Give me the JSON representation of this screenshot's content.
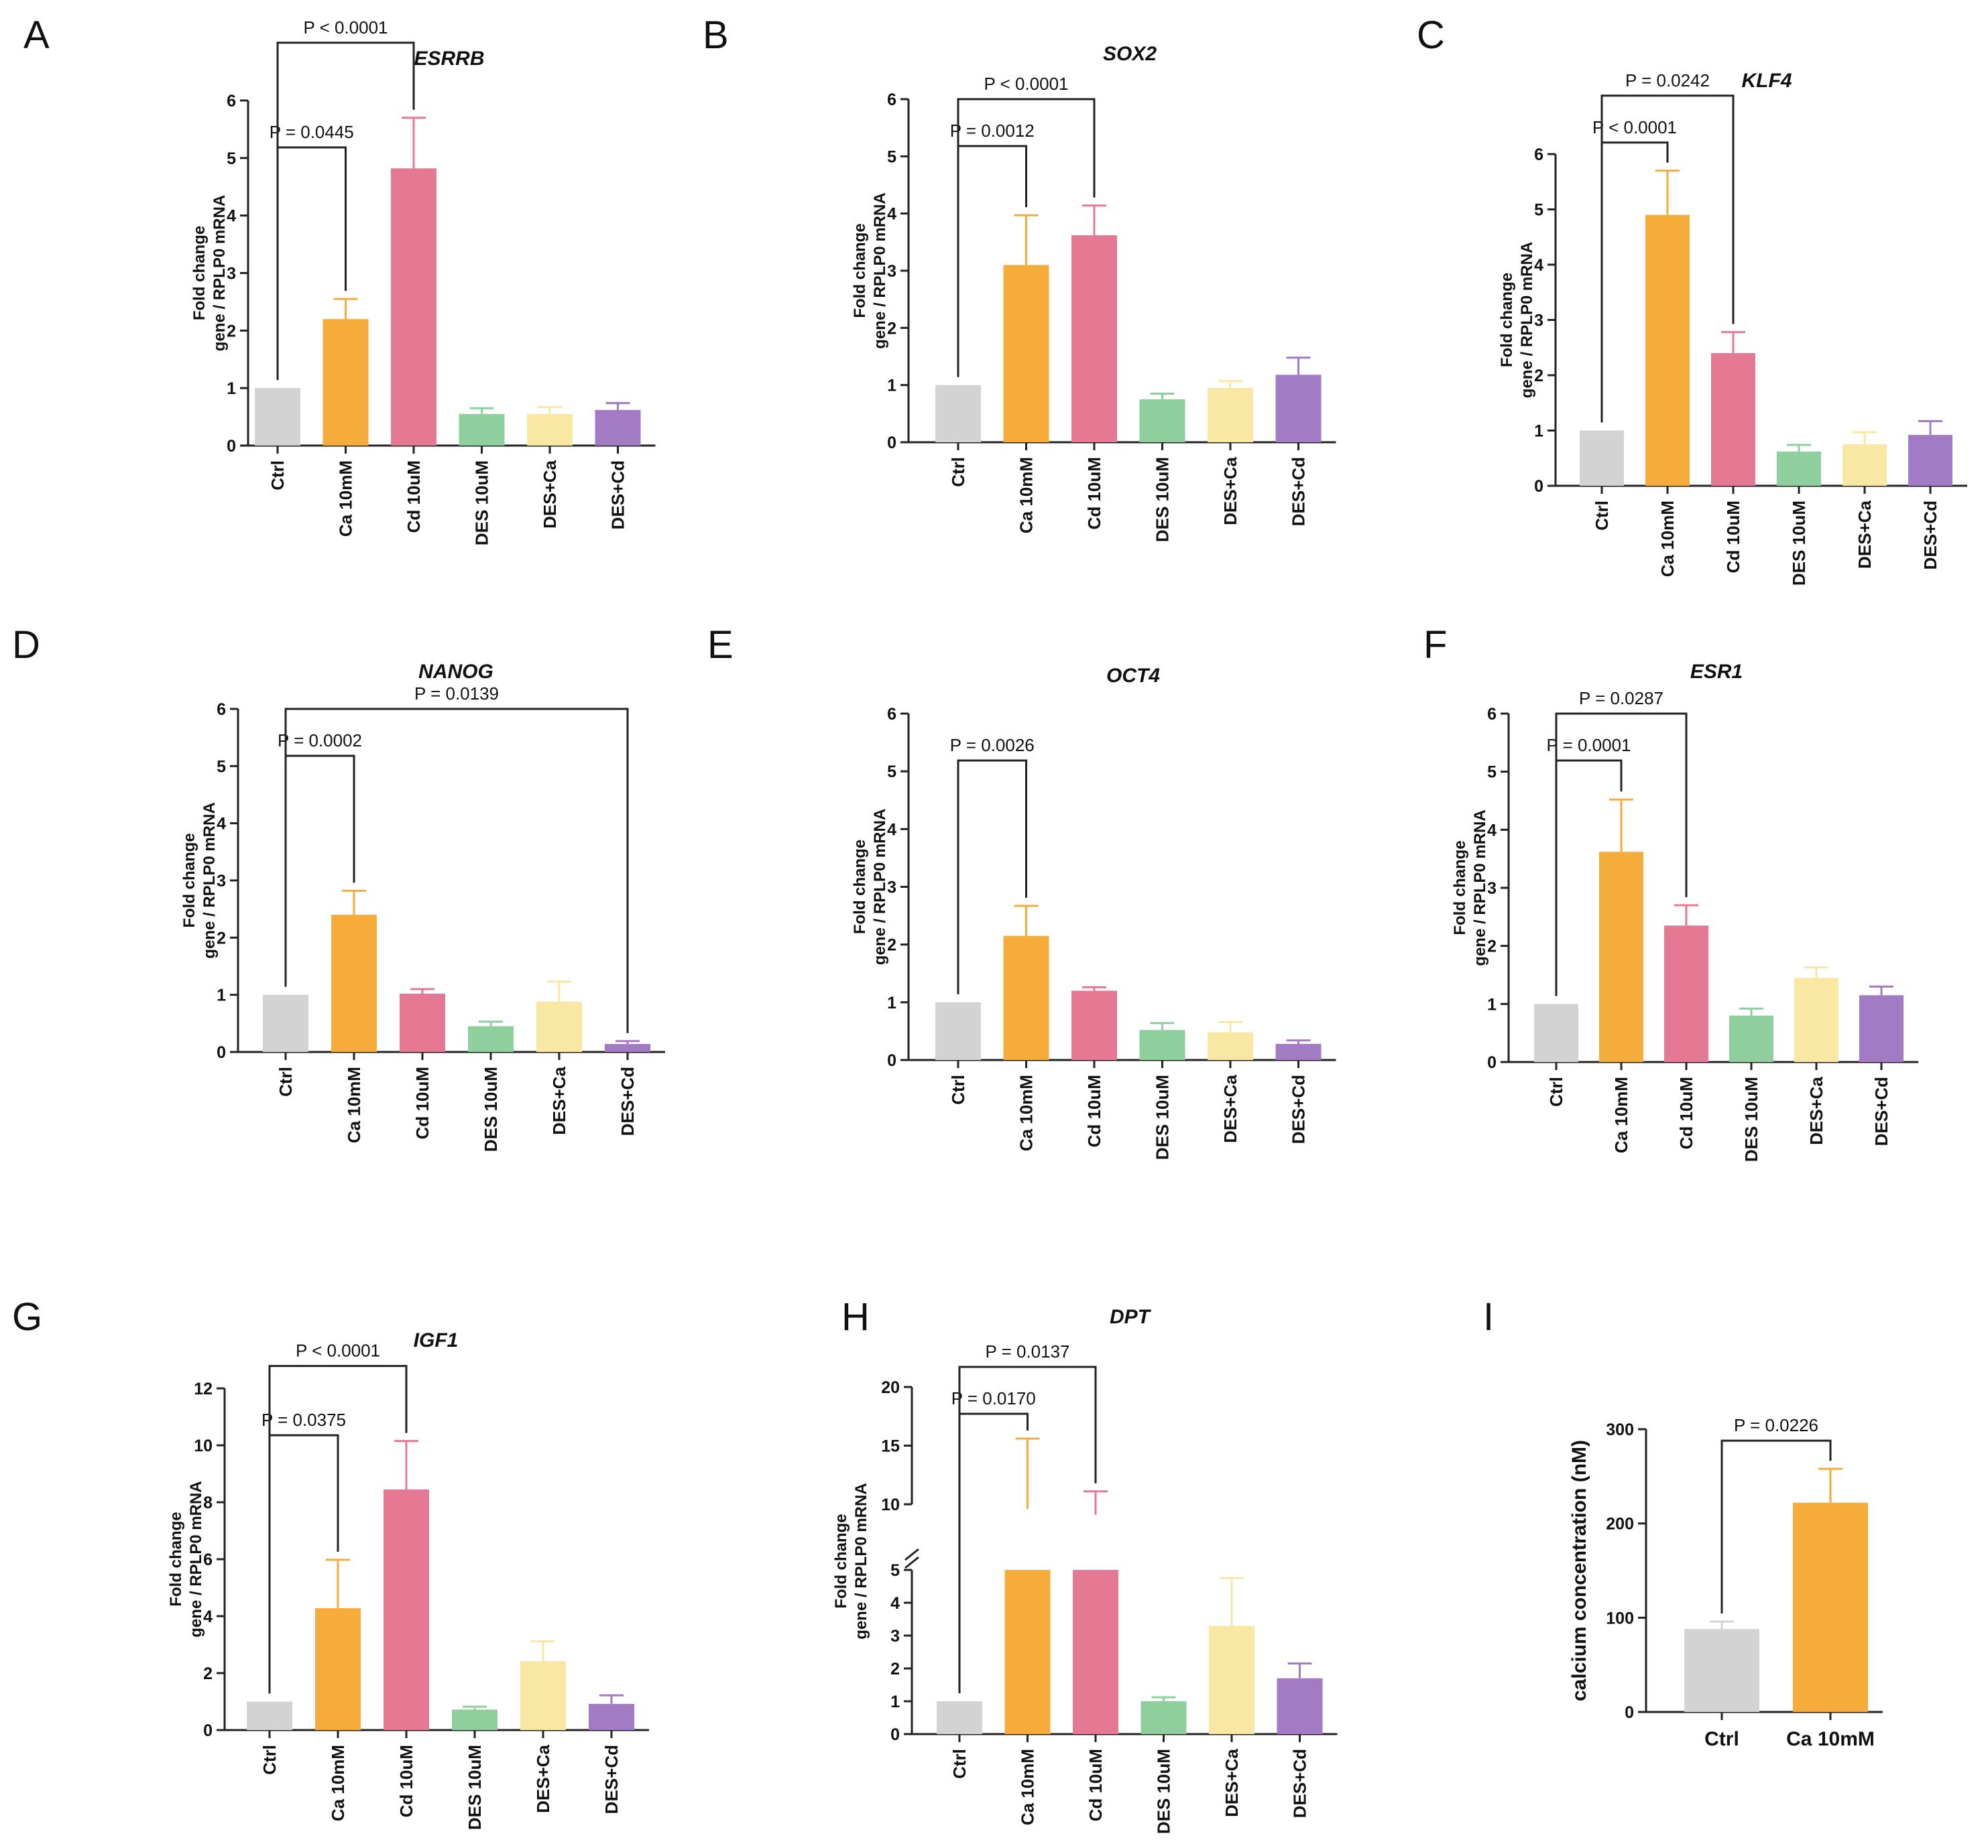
{
  "colors": {
    "Ctrl": "#d3d3d3",
    "Ca 10mM": "#f5ac3a",
    "Cd 10uM": "#e57893",
    "DES 10uM": "#8fcf9d",
    "DES+Ca": "#f9e8a3",
    "DES+Cd": "#a37bc4"
  },
  "chart_data": [
    {
      "panel": "A",
      "type": "bar",
      "title": "ESRRB",
      "ylabel": [
        "Fold change",
        "gene / RPLP0 mRNA"
      ],
      "ylim": [
        0,
        6
      ],
      "yticks": [
        "0",
        "1",
        "2",
        "3",
        "4",
        "5",
        "6"
      ],
      "categories": [
        "Ctrl",
        "Ca 10mM",
        "Cd 10uM",
        "DES 10uM",
        "DES+Ca",
        "DES+Cd"
      ],
      "values": [
        1.0,
        2.2,
        4.82,
        0.55,
        0.55,
        0.62
      ],
      "errors": [
        0,
        0.35,
        0.88,
        0.1,
        0.12,
        0.12
      ],
      "comparisons": [
        {
          "from": 0,
          "to": 1,
          "label": "P = 0.0445"
        },
        {
          "from": 0,
          "to": 2,
          "label": "P < 0.0001"
        }
      ]
    },
    {
      "panel": "B",
      "type": "bar",
      "title": "SOX2",
      "ylabel": [
        "Fold change",
        "gene / RPLP0 mRNA"
      ],
      "ylim": [
        0,
        6
      ],
      "yticks": [
        "0",
        "1",
        "2",
        "3",
        "4",
        "5",
        "6"
      ],
      "categories": [
        "Ctrl",
        "Ca 10mM",
        "Cd 10uM",
        "DES 10uM",
        "DES+Ca",
        "DES+Cd"
      ],
      "values": [
        1.0,
        3.1,
        3.62,
        0.75,
        0.95,
        1.18
      ],
      "errors": [
        0,
        0.87,
        0.52,
        0.1,
        0.12,
        0.3
      ],
      "comparisons": [
        {
          "from": 0,
          "to": 1,
          "label": "P = 0.0012"
        },
        {
          "from": 0,
          "to": 2,
          "label": "P < 0.0001"
        }
      ]
    },
    {
      "panel": "C",
      "type": "bar",
      "title": "KLF4",
      "ylabel": [
        "Fold change",
        "gene / RPLP0 mRNA"
      ],
      "ylim": [
        0,
        6
      ],
      "yticks": [
        "0",
        "1",
        "2",
        "3",
        "4",
        "5",
        "6"
      ],
      "categories": [
        "Ctrl",
        "Ca 10mM",
        "Cd 10uM",
        "DES 10uM",
        "DES+Ca",
        "DES+Cd"
      ],
      "values": [
        1.0,
        4.9,
        2.4,
        0.62,
        0.75,
        0.92
      ],
      "errors": [
        0,
        0.8,
        0.38,
        0.12,
        0.22,
        0.25
      ],
      "comparisons": [
        {
          "from": 0,
          "to": 1,
          "label": "P < 0.0001"
        },
        {
          "from": 0,
          "to": 2,
          "label": "P = 0.0242"
        }
      ]
    },
    {
      "panel": "D",
      "type": "bar",
      "title": "NANOG",
      "ylabel": [
        "Fold change",
        "gene / RPLP0 mRNA"
      ],
      "ylim": [
        0,
        6
      ],
      "yticks": [
        "0",
        "1",
        "2",
        "3",
        "4",
        "5",
        "6"
      ],
      "categories": [
        "Ctrl",
        "Ca 10mM",
        "Cd 10uM",
        "DES 10uM",
        "DES+Ca",
        "DES+Cd"
      ],
      "values": [
        1.0,
        2.4,
        1.02,
        0.45,
        0.88,
        0.14
      ],
      "errors": [
        0,
        0.42,
        0.08,
        0.08,
        0.35,
        0.05
      ],
      "comparisons": [
        {
          "from": 0,
          "to": 1,
          "label": "P = 0.0002"
        },
        {
          "from": 0,
          "to": 5,
          "label": "P = 0.0139"
        }
      ]
    },
    {
      "panel": "E",
      "type": "bar",
      "title": "OCT4",
      "ylabel": [
        "Fold change",
        "gene / RPLP0 mRNA"
      ],
      "ylim": [
        0,
        6
      ],
      "yticks": [
        "0",
        "1",
        "2",
        "3",
        "4",
        "5",
        "6"
      ],
      "categories": [
        "Ctrl",
        "Ca 10mM",
        "Cd 10uM",
        "DES 10uM",
        "DES+Ca",
        "DES+Cd"
      ],
      "values": [
        1.0,
        2.15,
        1.2,
        0.52,
        0.48,
        0.28
      ],
      "errors": [
        0,
        0.52,
        0.06,
        0.12,
        0.18,
        0.06
      ],
      "comparisons": [
        {
          "from": 0,
          "to": 1,
          "label": "P = 0.0026"
        }
      ]
    },
    {
      "panel": "F",
      "type": "bar",
      "title": "ESR1",
      "ylabel": [
        "Fold change",
        "gene / RPLP0 mRNA"
      ],
      "ylim": [
        0,
        6
      ],
      "yticks": [
        "0",
        "1",
        "2",
        "3",
        "4",
        "5",
        "6"
      ],
      "categories": [
        "Ctrl",
        "Ca 10mM",
        "Cd 10uM",
        "DES 10uM",
        "DES+Ca",
        "DES+Cd"
      ],
      "values": [
        1.0,
        3.62,
        2.35,
        0.8,
        1.45,
        1.15
      ],
      "errors": [
        0,
        0.9,
        0.35,
        0.12,
        0.18,
        0.15
      ],
      "comparisons": [
        {
          "from": 0,
          "to": 1,
          "label": "P = 0.0001"
        },
        {
          "from": 0,
          "to": 2,
          "label": "P = 0.0287"
        }
      ]
    },
    {
      "panel": "G",
      "type": "bar",
      "title": "IGF1",
      "ylabel": [
        "Fold change",
        "gene / RPLP0 mRNA"
      ],
      "ylim": [
        0,
        12
      ],
      "yticks": [
        "0",
        "2",
        "4",
        "6",
        "8",
        "10",
        "12"
      ],
      "categories": [
        "Ctrl",
        "Ca 10mM",
        "Cd 10uM",
        "DES 10uM",
        "DES+Ca",
        "DES+Cd"
      ],
      "values": [
        1.0,
        4.28,
        8.45,
        0.72,
        2.42,
        0.92
      ],
      "errors": [
        0,
        1.7,
        1.7,
        0.1,
        0.7,
        0.3
      ],
      "comparisons": [
        {
          "from": 0,
          "to": 1,
          "label": "P = 0.0375"
        },
        {
          "from": 0,
          "to": 2,
          "label": "P < 0.0001"
        }
      ]
    },
    {
      "panel": "H",
      "type": "bar",
      "title": "DPT",
      "ylabel": [
        "Fold change",
        "gene / RPLP0 mRNA"
      ],
      "axis_break": [
        5,
        10
      ],
      "yticks_lower": [
        "0",
        "1",
        "2",
        "3",
        "4",
        "5"
      ],
      "yticks_upper": [
        "10",
        "15",
        "20"
      ],
      "categories": [
        "Ctrl",
        "Ca 10mM",
        "Cd 10uM",
        "DES 10uM",
        "DES+Ca",
        "DES+Cd"
      ],
      "values": [
        1.0,
        9.6,
        9.1,
        1.0,
        3.3,
        1.7
      ],
      "errors": [
        0,
        6.0,
        2.0,
        0.12,
        1.45,
        0.45
      ],
      "comparisons": [
        {
          "from": 0,
          "to": 1,
          "label": "P = 0.0170"
        },
        {
          "from": 0,
          "to": 2,
          "label": "P = 0.0137"
        }
      ]
    },
    {
      "panel": "I",
      "type": "bar",
      "title": "",
      "ylabel": [
        "calcium concentration (nM)"
      ],
      "ylim": [
        0,
        300
      ],
      "yticks": [
        "0",
        "100",
        "200",
        "300"
      ],
      "categories": [
        "Ctrl",
        "Ca 10mM"
      ],
      "values": [
        88,
        222
      ],
      "errors": [
        8,
        36
      ],
      "comparisons": [
        {
          "from": 0,
          "to": 1,
          "label": "P = 0.0226"
        }
      ]
    }
  ]
}
